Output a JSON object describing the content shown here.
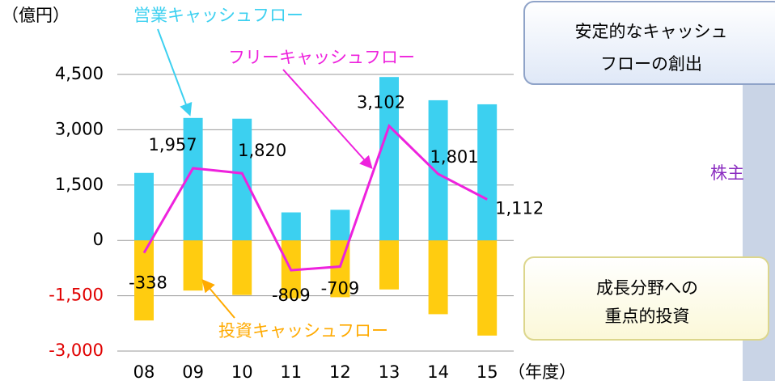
{
  "chart_data": {
    "type": "bar",
    "unit_label": "（億円）",
    "x_label": "（年度）",
    "categories": [
      "08",
      "09",
      "10",
      "11",
      "12",
      "13",
      "14",
      "15"
    ],
    "series": [
      {
        "name": "営業キャッシュフロー",
        "color": "#3cd0f0",
        "type": "bar",
        "values": [
          1830,
          3320,
          3300,
          760,
          830,
          4430,
          3800,
          3690
        ]
      },
      {
        "name": "投資キャッシュフロー",
        "color": "#ffcc10",
        "type": "bar",
        "values": [
          -2170,
          -1360,
          -1480,
          -1570,
          -1540,
          -1330,
          -2000,
          -2580
        ]
      },
      {
        "name": "フリーキャッシュフロー",
        "color": "#ee22dd",
        "type": "line",
        "values": [
          -338,
          1957,
          1820,
          -809,
          -709,
          3102,
          1801,
          1112
        ],
        "value_labels": [
          "-338",
          "1,957",
          "1,820",
          "-809",
          "-709",
          "3,102",
          "1,801",
          "1,112"
        ]
      }
    ],
    "ylim": [
      -3000,
      4500
    ],
    "yticks": [
      {
        "value": 4500,
        "label": "4,500"
      },
      {
        "value": 3000,
        "label": "3,000"
      },
      {
        "value": 1500,
        "label": "1,500"
      },
      0,
      {
        "value": -1500,
        "label": "-1,500"
      },
      {
        "value": -3000,
        "label": "-3,000"
      }
    ],
    "grid": true
  },
  "panel": {
    "top_box": [
      "安定的なキャッシュ",
      "フローの創出"
    ],
    "bottom_box": [
      "成長分野への",
      "重点的投資"
    ],
    "side_label": "株主"
  }
}
